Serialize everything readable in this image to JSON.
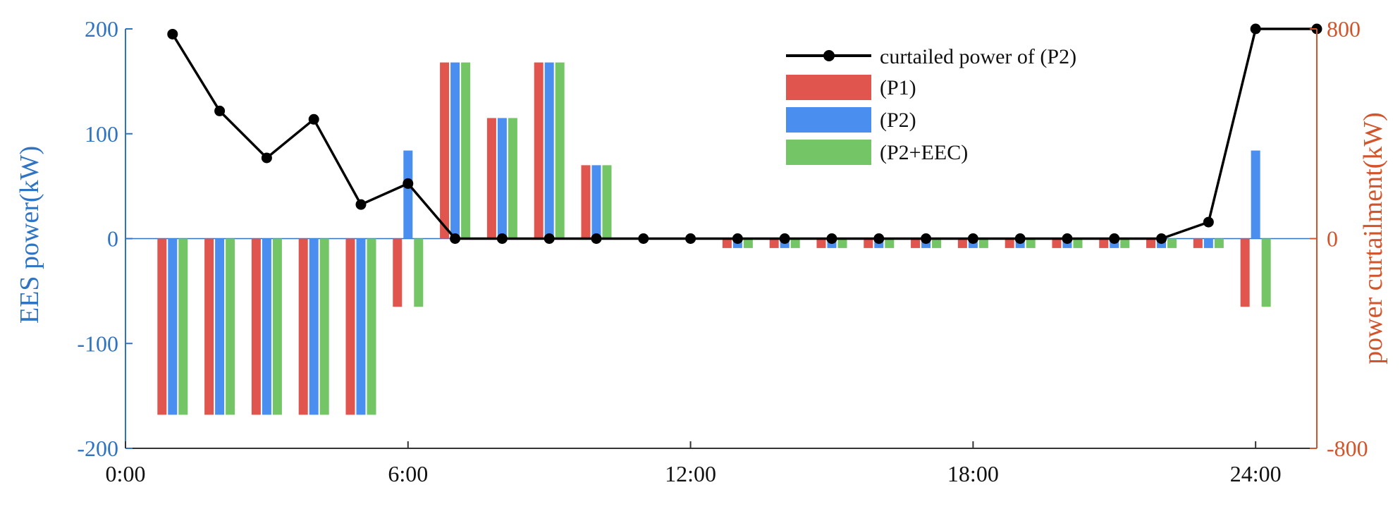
{
  "chart_data": {
    "type": "bar",
    "x_ticks": [
      "0:00",
      "6:00",
      "12:00",
      "18:00",
      "24:00"
    ],
    "x_tick_hours": [
      0,
      6,
      12,
      18,
      24
    ],
    "xlim": [
      0,
      25.3
    ],
    "hours": [
      1,
      2,
      3,
      4,
      5,
      6,
      7,
      8,
      9,
      10,
      11,
      12,
      13,
      14,
      15,
      16,
      17,
      18,
      19,
      20,
      21,
      22,
      23,
      24
    ],
    "left_axis": {
      "label": "EES power(kW)",
      "ylim": [
        -200,
        200
      ],
      "ticks": [
        200,
        100,
        0,
        -100,
        -200
      ],
      "tick_labels": [
        "200",
        "100",
        "0",
        "-100",
        "-200"
      ],
      "color": "#2f73c3"
    },
    "right_axis": {
      "label": "power curtailment(kW)",
      "ylim": [
        -800,
        800
      ],
      "ticks": [
        800,
        0,
        -800
      ],
      "tick_labels": [
        "800",
        "0",
        "-800"
      ],
      "color": "#d2542a"
    },
    "series": [
      {
        "name": "(P1)",
        "color": "#e0554e",
        "values": [
          -168,
          -168,
          -168,
          -168,
          -168,
          -65,
          168,
          115,
          168,
          70,
          0,
          0,
          -9,
          -9,
          -9,
          -9,
          -9,
          -9,
          -9,
          -9,
          -9,
          -9,
          -9,
          -65
        ]
      },
      {
        "name": "(P2)",
        "color": "#4a8ff0",
        "values": [
          -168,
          -168,
          -168,
          -168,
          -168,
          84,
          168,
          115,
          168,
          70,
          0,
          0,
          -9,
          -9,
          -9,
          -9,
          -9,
          -9,
          -9,
          -9,
          -9,
          -9,
          -9,
          84
        ]
      },
      {
        "name": "(P2+EEC)",
        "color": "#74c566",
        "values": [
          -168,
          -168,
          -168,
          -168,
          -168,
          -65,
          168,
          115,
          168,
          70,
          0,
          0,
          -9,
          -9,
          -9,
          -9,
          -9,
          -9,
          -9,
          -9,
          -9,
          -9,
          -9,
          -65
        ]
      }
    ],
    "curtailment": {
      "name": "curtailed power of (P2)",
      "color": "#000000",
      "x": [
        1,
        2,
        3,
        4,
        5,
        6,
        7,
        8,
        9,
        10,
        11,
        12,
        13,
        14,
        15,
        16,
        17,
        18,
        19,
        20,
        21,
        22,
        23,
        24,
        25.3
      ],
      "values": [
        780,
        487,
        308,
        455,
        130,
        210,
        0,
        0,
        0,
        0,
        0,
        0,
        0,
        0,
        0,
        0,
        0,
        0,
        0,
        0,
        0,
        0,
        63,
        800,
        800
      ]
    },
    "legend_position": "top-center"
  }
}
